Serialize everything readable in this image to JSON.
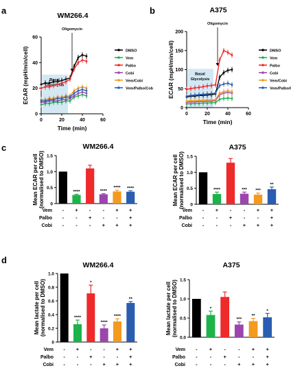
{
  "colors": {
    "DMSO": "#000000",
    "Vem": "#1eb24a",
    "Palbo": "#ee2a2a",
    "Cobi": "#9b46ad",
    "Vem/Cobi": "#f39a1f",
    "Vem/Palbo/Cob": "#2a5db0",
    "basal": "#cfe6f3"
  },
  "chart_data": [
    {
      "panel": "a",
      "type": "line",
      "title": "WM266.4",
      "xlabel": "Time (min)",
      "ylabel": "ECAR (mpH/min/cell)",
      "xlim": [
        0,
        60
      ],
      "ylim": [
        0,
        60
      ],
      "xticks": [
        0,
        20,
        40,
        60
      ],
      "yticks": [
        0,
        20,
        40,
        60
      ],
      "annotations": [
        "Oligomycin",
        "Basal Glycolysis"
      ],
      "x": [
        0,
        4,
        8,
        12,
        16,
        20,
        24,
        28,
        32,
        36,
        40,
        44
      ],
      "series": [
        {
          "name": "DMSO",
          "values": [
            23,
            24,
            24,
            25,
            25,
            26,
            27,
            28,
            37,
            44,
            46,
            45
          ]
        },
        {
          "name": "Vem",
          "values": [
            7,
            8,
            8,
            9,
            9,
            9,
            10,
            10,
            13,
            14,
            15,
            14
          ]
        },
        {
          "name": "Palbo",
          "values": [
            20,
            21,
            21,
            22,
            23,
            24,
            25,
            27,
            35,
            40,
            42,
            41
          ]
        },
        {
          "name": "Cobi",
          "values": [
            9,
            9,
            10,
            10,
            10,
            11,
            11,
            12,
            14,
            16,
            17,
            16
          ]
        },
        {
          "name": "Vem/Cobi",
          "values": [
            11,
            11,
            12,
            12,
            13,
            13,
            14,
            14,
            18,
            20,
            21,
            20
          ]
        },
        {
          "name": "Vem/Palbo/Cob",
          "values": [
            10,
            10,
            11,
            11,
            12,
            12,
            13,
            13,
            16,
            18,
            19,
            18
          ]
        }
      ]
    },
    {
      "panel": "b",
      "type": "line",
      "title": "A375",
      "xlabel": "Time (min)",
      "ylabel": "ECAR (mpH/min/cell)",
      "xlim": [
        0,
        60
      ],
      "ylim": [
        0,
        200
      ],
      "xticks": [
        0,
        20,
        40,
        60
      ],
      "yticks": [
        0,
        50,
        100,
        150,
        200
      ],
      "annotations": [
        "Oligomycin",
        "Basal Glycolysis"
      ],
      "x": [
        0,
        4,
        8,
        12,
        16,
        20,
        24,
        28,
        32,
        36,
        40,
        44
      ],
      "series": [
        {
          "name": "DMSO",
          "values": [
            28,
            30,
            30,
            32,
            32,
            33,
            34,
            36,
            80,
            92,
            98,
            100
          ]
        },
        {
          "name": "Vem",
          "values": [
            10,
            10,
            11,
            11,
            12,
            12,
            13,
            13,
            22,
            24,
            25,
            24
          ]
        },
        {
          "name": "Palbo",
          "values": [
            48,
            50,
            52,
            53,
            55,
            57,
            58,
            60,
            125,
            150,
            145,
            138
          ]
        },
        {
          "name": "Cobi",
          "values": [
            14,
            15,
            15,
            16,
            16,
            17,
            17,
            18,
            34,
            38,
            40,
            38
          ]
        },
        {
          "name": "Vem/Cobi",
          "values": [
            17,
            18,
            18,
            19,
            19,
            20,
            20,
            21,
            38,
            42,
            44,
            42
          ]
        },
        {
          "name": "Vem/Palbo/Cob",
          "values": [
            30,
            32,
            33,
            34,
            35,
            36,
            37,
            38,
            58,
            62,
            64,
            60
          ]
        }
      ]
    },
    {
      "panel": "c-left",
      "type": "bar",
      "title": "WM266.4",
      "ylabel": "Mean ECAR per cell\n(normalised to DMSO)",
      "ylim": [
        0,
        1.5
      ],
      "yticks": [
        "0",
        "0.5",
        "1.0",
        "1.5"
      ],
      "values": [
        1.0,
        0.27,
        1.1,
        0.29,
        0.38,
        0.37
      ],
      "errors": [
        0,
        0.02,
        0.1,
        0.02,
        0.04,
        0.03
      ],
      "significance": [
        "",
        "****",
        "",
        "****",
        "****",
        "****"
      ],
      "conditions": {
        "Vem": [
          "-",
          "+",
          "-",
          "-",
          "+",
          "+"
        ],
        "Palbo": [
          "-",
          "-",
          "+",
          "-",
          "-",
          "+"
        ],
        "Cobi": [
          "-",
          "-",
          "-",
          "+",
          "+",
          "+"
        ]
      }
    },
    {
      "panel": "c-right",
      "type": "bar",
      "title": "A375",
      "ylabel": "Mean ECAR per cell\n(normalised to DMSO)",
      "ylim": [
        0,
        1.5
      ],
      "yticks": [
        "0",
        "0.5",
        "1.0",
        "1.5"
      ],
      "values": [
        1.0,
        0.32,
        1.3,
        0.33,
        0.3,
        0.47
      ],
      "errors": [
        0,
        0.06,
        0.13,
        0.05,
        0.05,
        0.07
      ],
      "significance": [
        "",
        "****",
        "",
        "***",
        "***",
        "**"
      ],
      "conditions": {
        "Vem": [
          "-",
          "+",
          "-",
          "-",
          "+",
          "+"
        ],
        "Palbo": [
          "-",
          "-",
          "+",
          "-",
          "-",
          "+"
        ],
        "Cobi": [
          "-",
          "-",
          "-",
          "+",
          "+",
          "+"
        ]
      }
    },
    {
      "panel": "d-left",
      "type": "bar",
      "title": "WM266.4",
      "ylabel": "Mean lactate per cell\n(normalised to DMSO)",
      "ylim": [
        0,
        1.0
      ],
      "yticks": [
        "0",
        "0.2",
        "0.4",
        "0.6",
        "0.8",
        "1.0"
      ],
      "values": [
        1.0,
        0.26,
        0.71,
        0.2,
        0.3,
        0.57
      ],
      "errors": [
        0,
        0.06,
        0.12,
        0.05,
        0.04,
        0.02
      ],
      "significance": [
        "",
        "****",
        "*",
        "****",
        "****",
        "**"
      ],
      "conditions": {
        "Vem": [
          "-",
          "+",
          "-",
          "-",
          "+",
          "+"
        ],
        "Palbo": [
          "-",
          "-",
          "+",
          "-",
          "-",
          "+"
        ],
        "Cobi": [
          "-",
          "-",
          "-",
          "+",
          "+",
          "+"
        ]
      }
    },
    {
      "panel": "d-right",
      "type": "bar",
      "title": "A375",
      "ylabel": "Mean lactate per cell\n(normalised to DMSO)",
      "ylim": [
        0,
        1.5
      ],
      "yticks": [
        "0.0",
        "0.5",
        "1.0",
        "1.5"
      ],
      "values": [
        1.0,
        0.58,
        1.05,
        0.33,
        0.42,
        0.52
      ],
      "errors": [
        0,
        0.1,
        0.13,
        0.07,
        0.07,
        0.1
      ],
      "significance": [
        "",
        "*",
        "",
        "***",
        "**",
        "*"
      ],
      "conditions": {
        "Vem": [
          "-",
          "+",
          "-",
          "-",
          "+",
          "+"
        ],
        "Palbo": [
          "-",
          "-",
          "+",
          "-",
          "-",
          "+"
        ],
        "Cobi": [
          "-",
          "-",
          "-",
          "+",
          "+",
          "+"
        ]
      }
    }
  ],
  "panel_labels": [
    "a",
    "b",
    "c",
    "d"
  ]
}
